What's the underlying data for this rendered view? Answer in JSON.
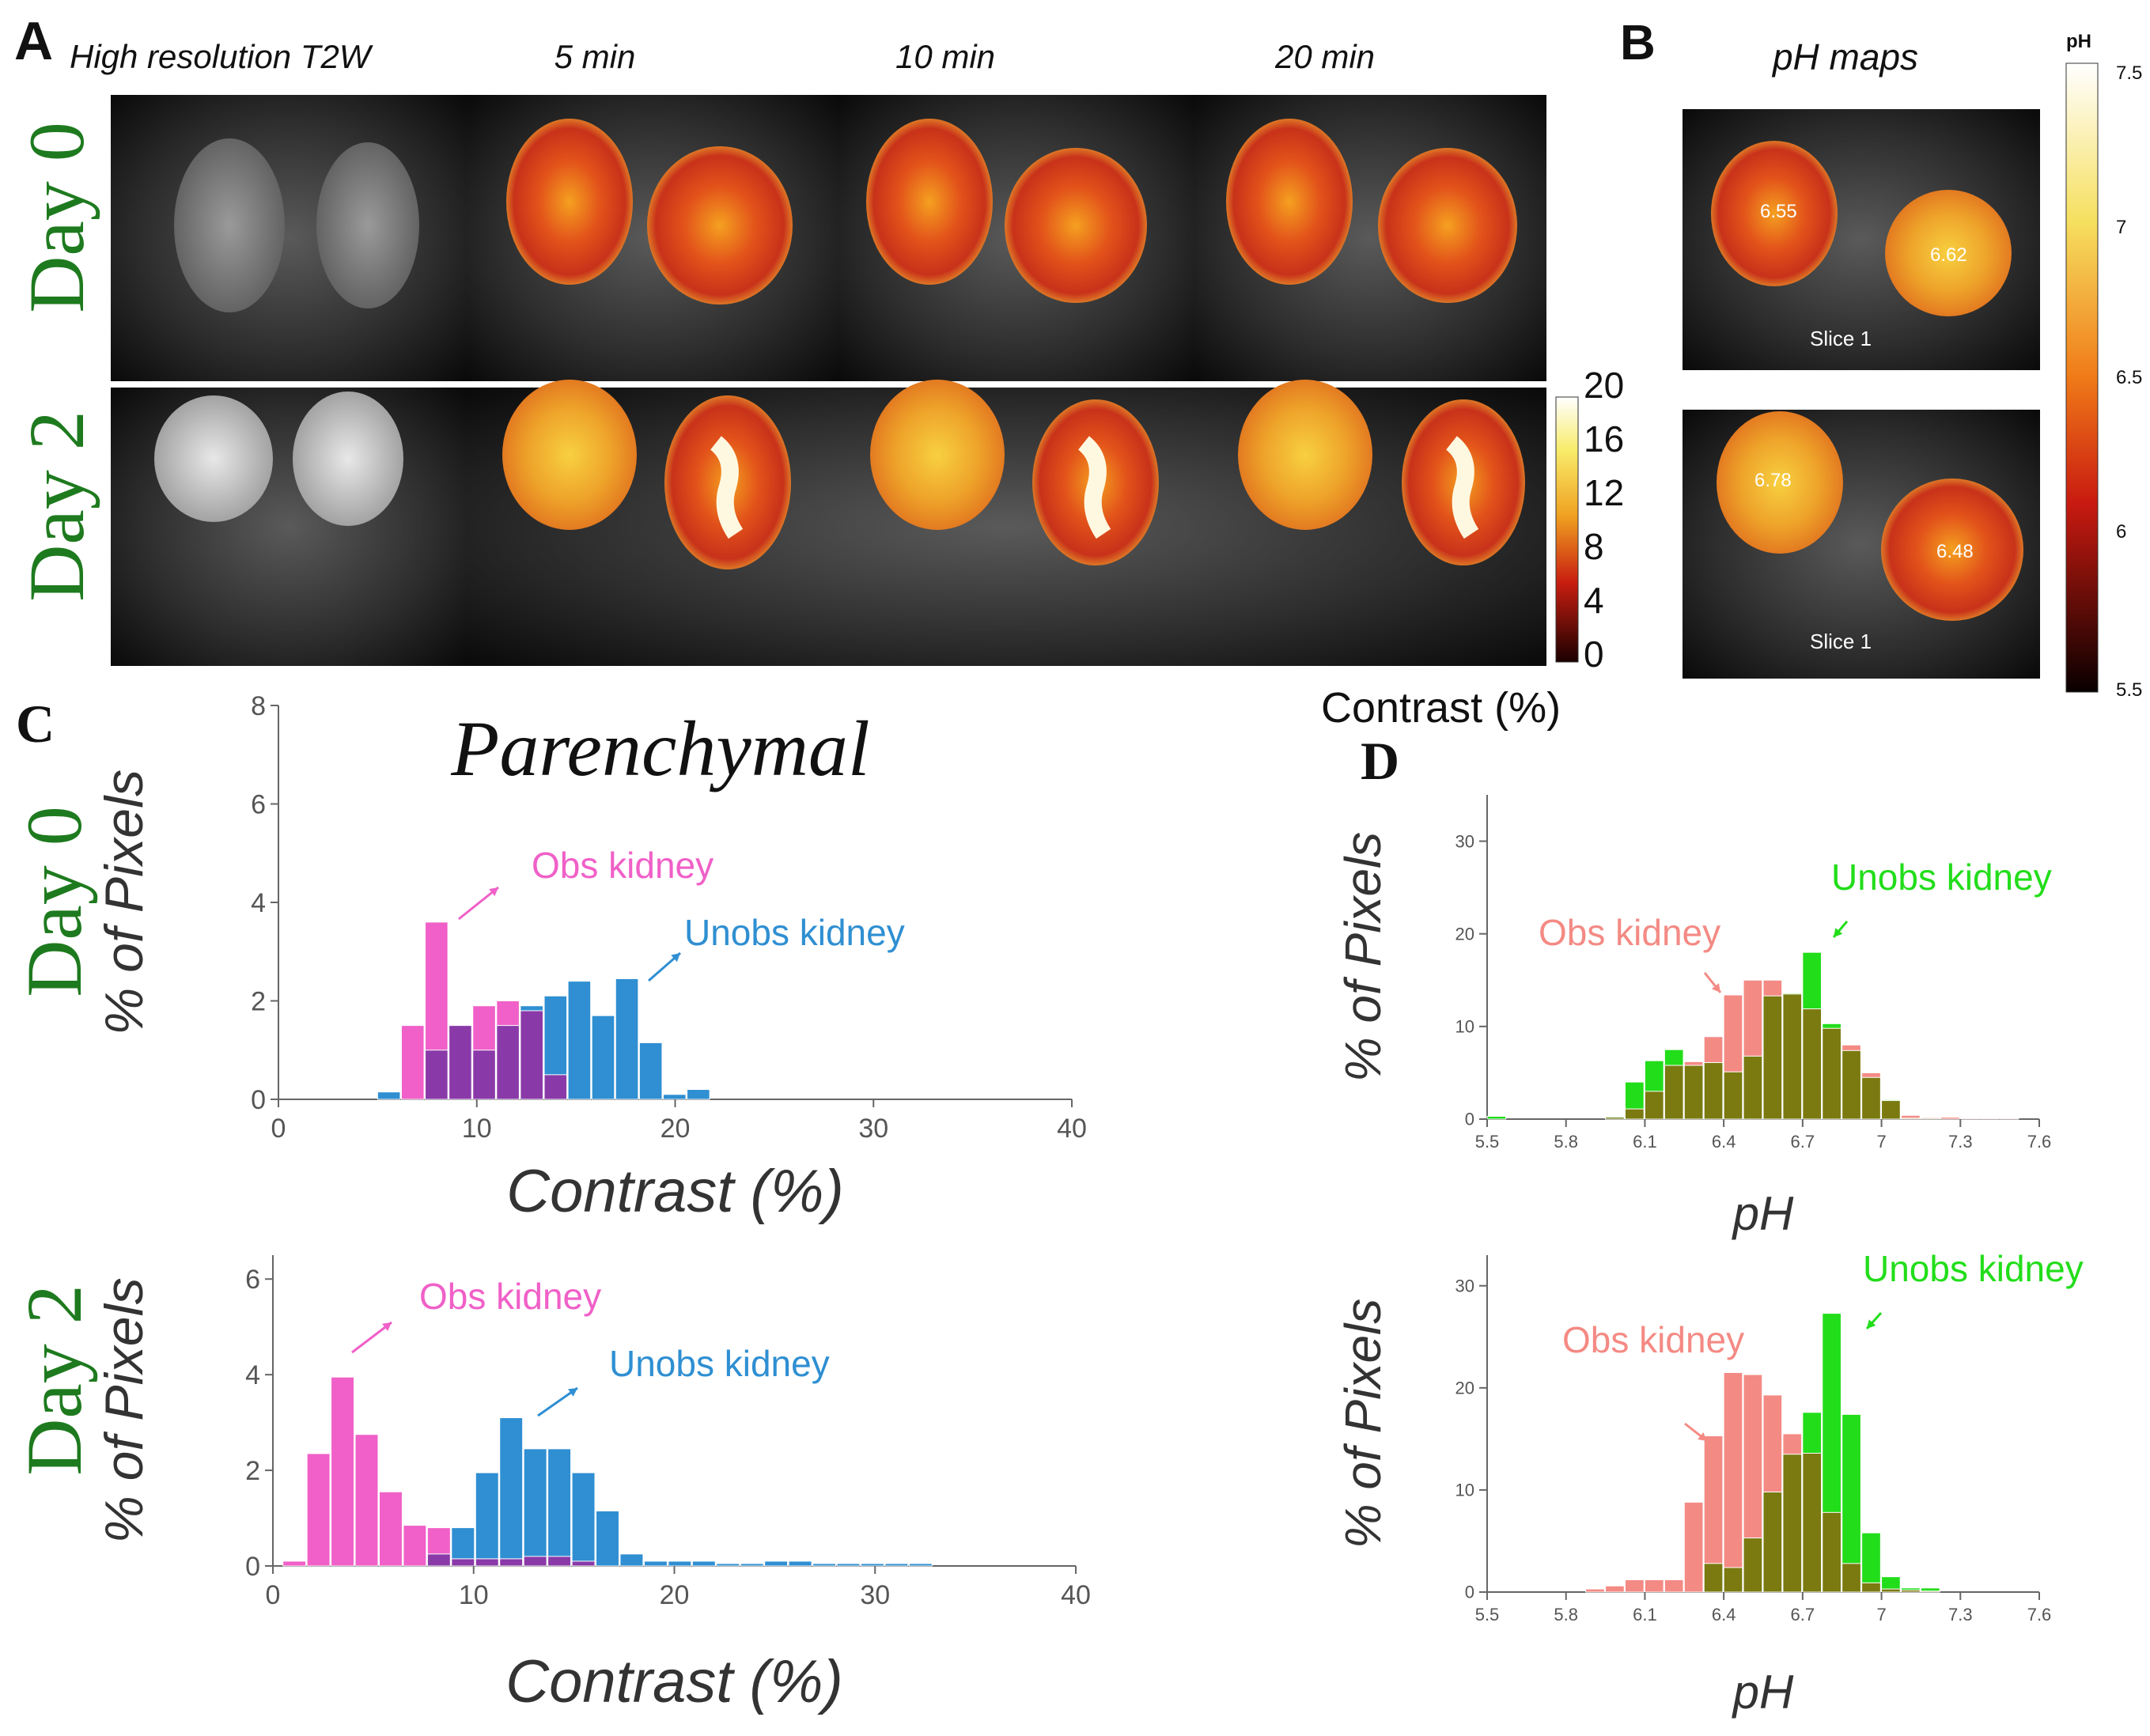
{
  "panelA": {
    "letter": "A",
    "col_headers": [
      "High resolution T2W",
      "5 min",
      "10 min",
      "20 min"
    ],
    "rows": [
      "Day 0",
      "Day 2"
    ],
    "colorbar": {
      "ticks": [
        "20",
        "16",
        "12",
        "8",
        "4",
        "0"
      ],
      "label": "Contrast (%)"
    }
  },
  "panelB": {
    "letter": "B",
    "title": "pH maps",
    "slices": [
      {
        "left_value": "6.55",
        "right_value": "6.62",
        "slice_label": "Slice 1"
      },
      {
        "left_value": "6.78",
        "right_value": "6.48",
        "slice_label": "Slice 1"
      }
    ],
    "colorbar": {
      "title": "pH",
      "ticks": [
        "7.5",
        "7",
        "6.5",
        "6",
        "5.5"
      ]
    }
  },
  "panelC": {
    "letter": "C",
    "title": "Parenchymal",
    "rows": [
      "Day 0",
      "Day 2"
    ]
  },
  "panelD": {
    "letter": "D"
  },
  "colors": {
    "day_green": "#1e7a1e",
    "obs_contrast": "#f060c8",
    "unobs_contrast": "#2f8fd2",
    "overlap_contrast": "#8a3aa8",
    "obs_ph": "#f48a84",
    "unobs_ph": "#22dd1a",
    "overlap_ph": "#7a7a10"
  },
  "chart_data": [
    {
      "id": "C-day0",
      "type": "bar",
      "xlabel": "Contrast (%)",
      "ylabel": "% of Pixels",
      "xlim": [
        0,
        40
      ],
      "ylim": [
        0,
        8
      ],
      "xticks": [
        0,
        10,
        20,
        30,
        40
      ],
      "yticks": [
        0,
        2,
        4,
        6,
        8
      ],
      "bin_start": 5,
      "bin_width": 1.2,
      "series": [
        {
          "name": "Obs kidney",
          "values": [
            0,
            1.5,
            3.6,
            1.5,
            1.9,
            2.0,
            1.8,
            0.5,
            0,
            0,
            0,
            0,
            0,
            0
          ]
        },
        {
          "name": "Unobs kidney",
          "values": [
            0.15,
            0,
            1.0,
            1.5,
            1.0,
            1.5,
            1.9,
            2.1,
            2.4,
            1.7,
            2.45,
            1.15,
            0.1,
            0.2
          ]
        }
      ],
      "annotations": [
        "Obs kidney",
        "Unobs kidney"
      ]
    },
    {
      "id": "C-day2",
      "type": "bar",
      "xlabel": "Contrast (%)",
      "ylabel": "% of Pixels",
      "xlim": [
        0,
        40
      ],
      "ylim": [
        0,
        6.5
      ],
      "xticks": [
        0,
        10,
        20,
        30,
        40
      ],
      "yticks": [
        0,
        2,
        4,
        6
      ],
      "bin_start": 0.5,
      "bin_width": 1.2,
      "series": [
        {
          "name": "Obs kidney",
          "values": [
            0.1,
            2.35,
            3.95,
            2.75,
            1.55,
            0.85,
            0.8,
            0.15,
            0.15,
            0.15,
            0.2,
            0.2,
            0.1,
            0,
            0,
            0,
            0,
            0,
            0,
            0,
            0,
            0,
            0,
            0,
            0,
            0,
            0
          ]
        },
        {
          "name": "Unobs kidney",
          "values": [
            0,
            0,
            0,
            0,
            0,
            0,
            0.25,
            0.8,
            1.95,
            3.1,
            2.45,
            2.45,
            1.95,
            1.15,
            0.25,
            0.1,
            0.1,
            0.1,
            0.05,
            0.05,
            0.1,
            0.1,
            0.05,
            0.05,
            0.05,
            0.05,
            0.05
          ]
        }
      ],
      "annotations": [
        "Obs kidney",
        "Unobs kidney"
      ]
    },
    {
      "id": "D-day0",
      "type": "bar",
      "xlabel": "pH",
      "ylabel": "% of Pixels",
      "xlim": [
        5.5,
        7.6
      ],
      "ylim": [
        0,
        35
      ],
      "xticks": [
        5.5,
        5.8,
        6.1,
        6.4,
        6.7,
        7,
        7.3,
        7.6
      ],
      "yticks": [
        0,
        10,
        20,
        30
      ],
      "bin_start": 5.5,
      "bin_width": 0.075,
      "series": [
        {
          "name": "Obs kidney",
          "values": [
            0,
            0,
            0,
            0,
            0,
            0,
            0.2,
            1.1,
            3.0,
            5.8,
            6.2,
            8.9,
            13.4,
            15.0,
            15.0,
            13.5,
            11.9,
            9.8,
            8.0,
            5.0,
            2.0,
            0.4,
            0.2,
            0.2,
            0.1,
            0.1,
            0.1,
            0
          ]
        },
        {
          "name": "Unobs kidney",
          "values": [
            0.3,
            0,
            0,
            0,
            0,
            0,
            0.3,
            4.0,
            6.3,
            7.5,
            5.8,
            6.1,
            5.1,
            6.8,
            13.3,
            13.6,
            18.0,
            10.3,
            7.4,
            4.5,
            2.1,
            0.1,
            0.1,
            0,
            0,
            0,
            0,
            0
          ]
        }
      ],
      "annotations": [
        "Obs kidney",
        "Unobs kidney"
      ]
    },
    {
      "id": "D-day2",
      "type": "bar",
      "xlabel": "pH",
      "ylabel": "% of Pixels",
      "xlim": [
        5.5,
        7.6
      ],
      "ylim": [
        0,
        33
      ],
      "xticks": [
        5.5,
        5.8,
        6.1,
        6.4,
        6.7,
        7,
        7.3,
        7.6
      ],
      "yticks": [
        0,
        10,
        20,
        30
      ],
      "bin_start": 5.5,
      "bin_width": 0.075,
      "series": [
        {
          "name": "Obs kidney",
          "values": [
            0,
            0,
            0,
            0,
            0,
            0.3,
            0.6,
            1.2,
            1.2,
            1.2,
            8.8,
            15.3,
            21.5,
            21.3,
            19.3,
            15.5,
            13.6,
            7.8,
            2.8,
            0.9,
            0.3,
            0.2,
            0.1,
            0,
            0,
            0,
            0,
            0
          ]
        },
        {
          "name": "Unobs kidney",
          "values": [
            0,
            0,
            0,
            0,
            0,
            0,
            0,
            0,
            0,
            0,
            0,
            2.8,
            2.4,
            5.3,
            9.8,
            13.5,
            17.6,
            27.3,
            17.4,
            5.8,
            1.5,
            0.4,
            0.4,
            0,
            0,
            0,
            0,
            0
          ]
        }
      ],
      "annotations": [
        "Obs kidney",
        "Unobs kidney"
      ]
    }
  ]
}
